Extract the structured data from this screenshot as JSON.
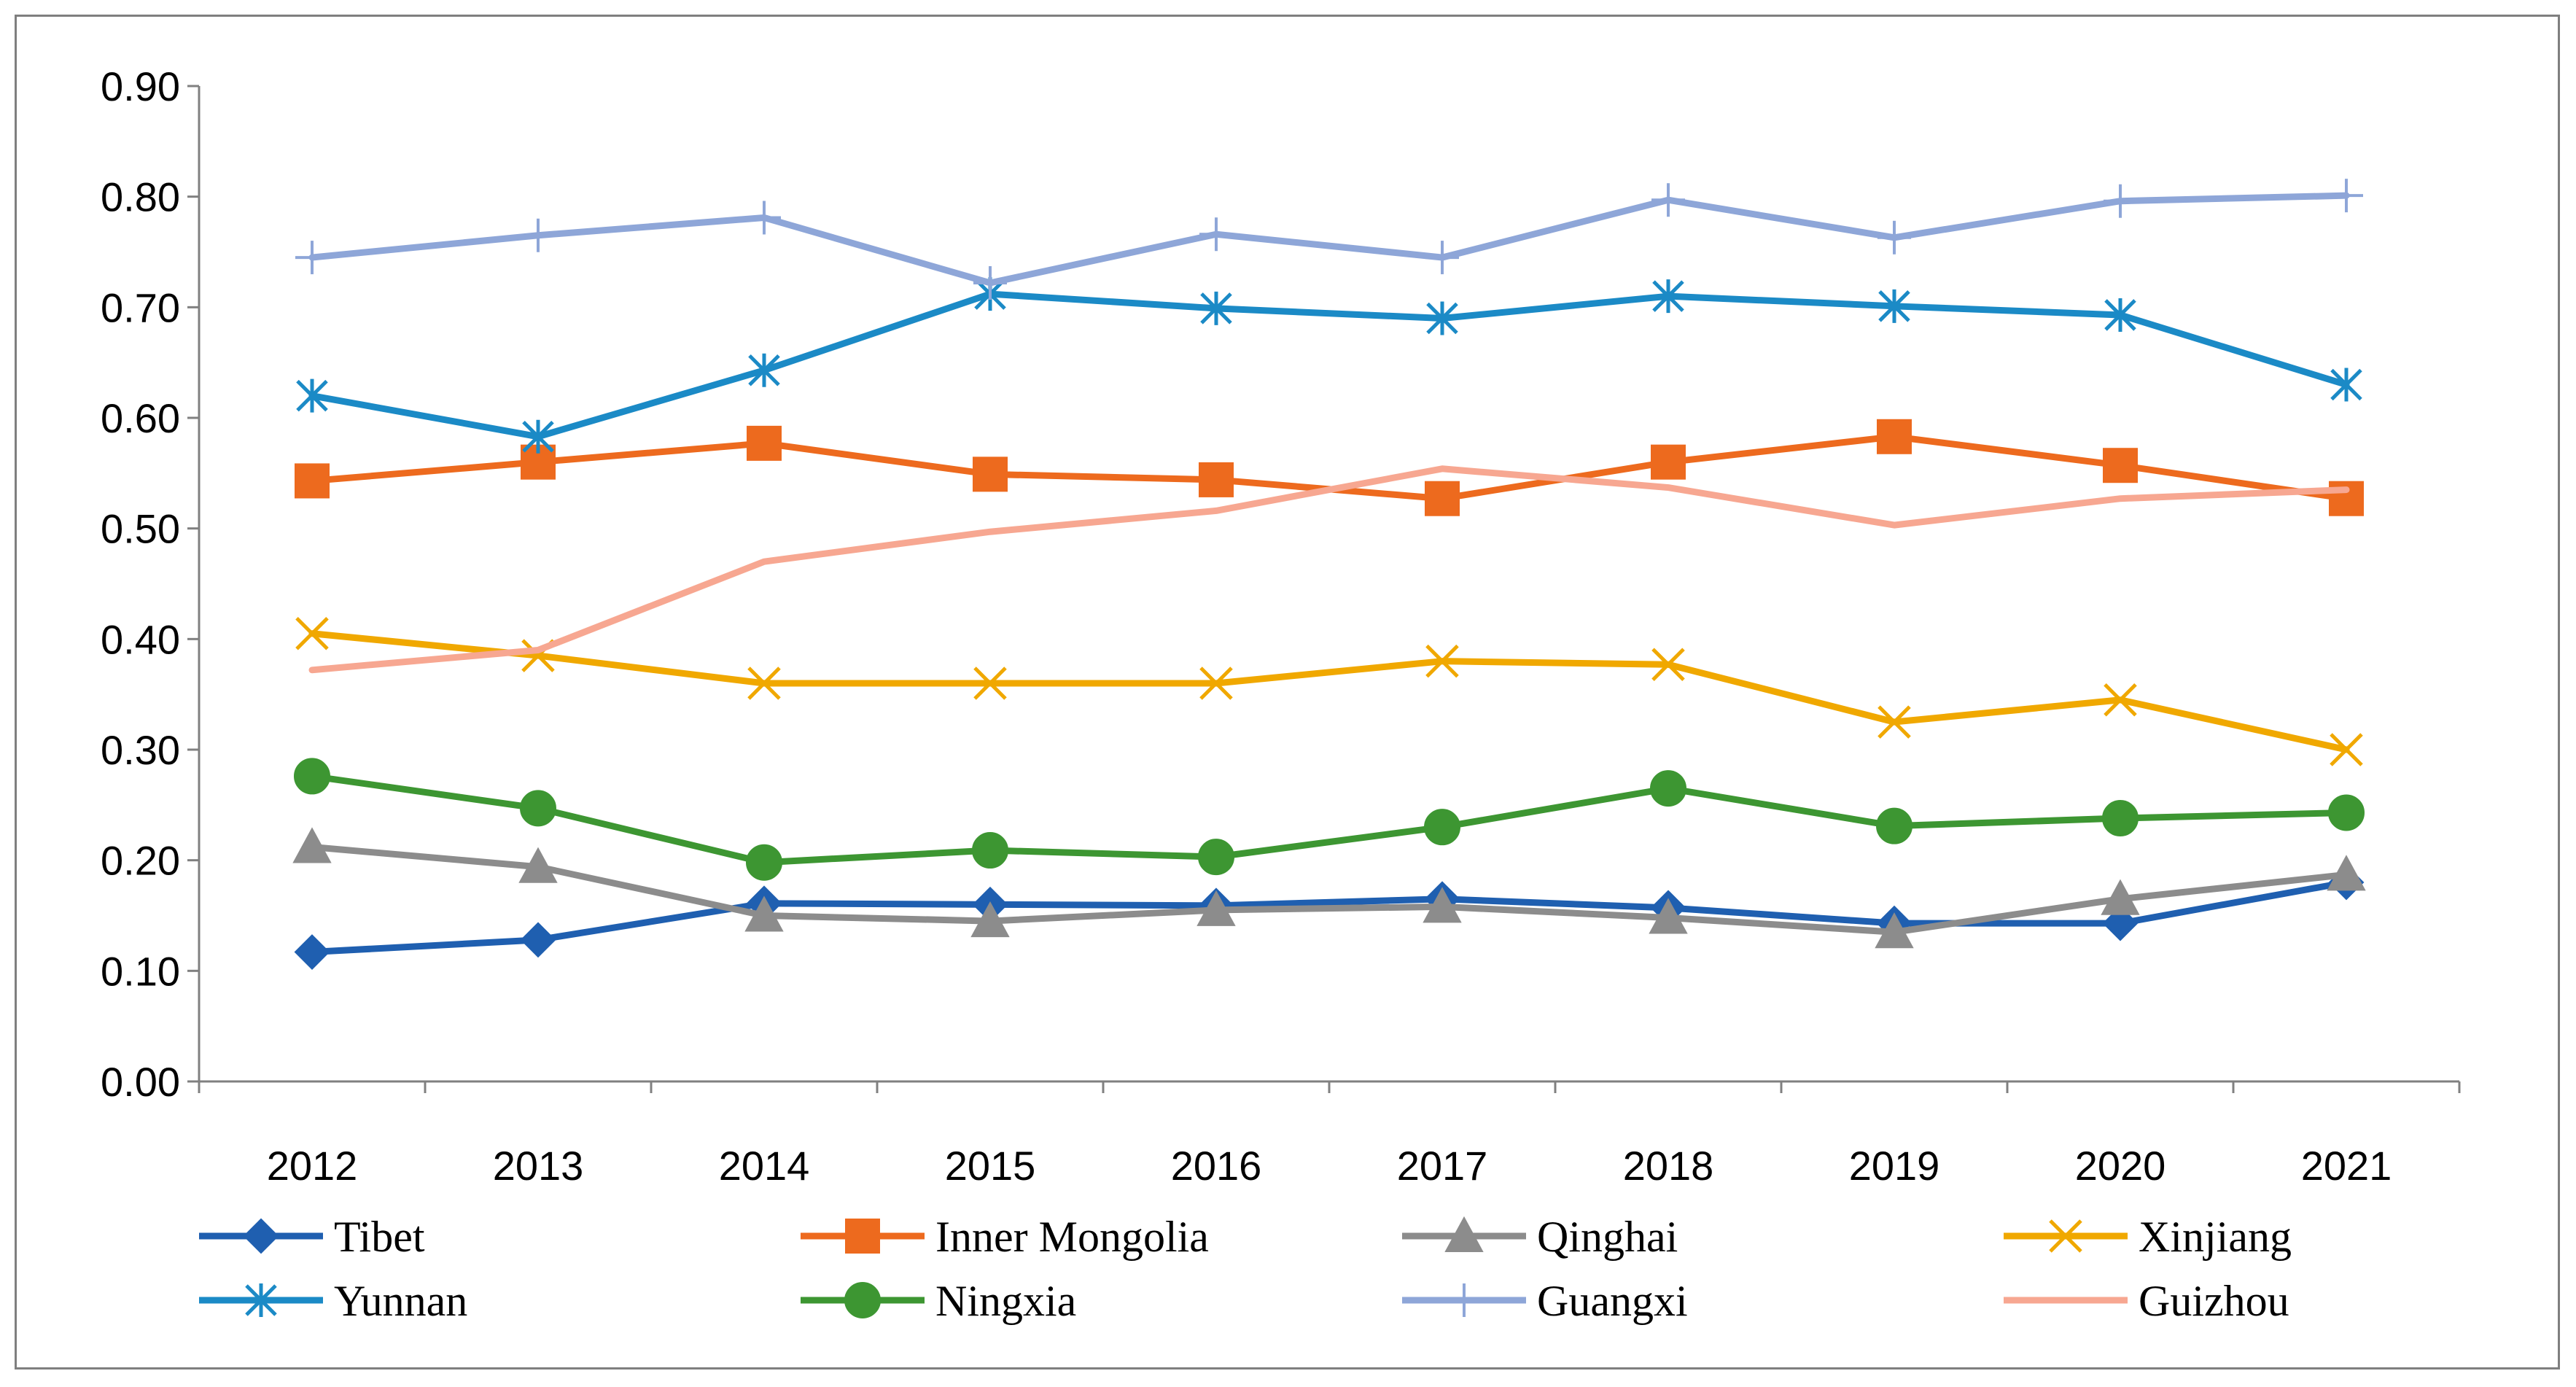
{
  "chart_data": {
    "type": "line",
    "title": "",
    "xlabel": "",
    "ylabel": "",
    "categories": [
      "2012",
      "2013",
      "2014",
      "2015",
      "2016",
      "2017",
      "2018",
      "2019",
      "2020",
      "2021"
    ],
    "ylim": [
      0,
      0.9
    ],
    "yticks": [
      "0.00",
      "0.10",
      "0.20",
      "0.30",
      "0.40",
      "0.50",
      "0.60",
      "0.70",
      "0.80",
      "0.90"
    ],
    "grid": false,
    "legend_position": "bottom",
    "series": [
      {
        "name": "Tibet",
        "color": "#1f5fb0",
        "marker": "diamond",
        "values": [
          0.117,
          0.128,
          0.161,
          0.16,
          0.159,
          0.165,
          0.157,
          0.143,
          0.143,
          0.18
        ]
      },
      {
        "name": "Inner Mongolia",
        "color": "#ed6a1e",
        "marker": "square",
        "values": [
          0.543,
          0.56,
          0.577,
          0.549,
          0.544,
          0.527,
          0.56,
          0.583,
          0.557,
          0.527
        ]
      },
      {
        "name": "Qinghai",
        "color": "#8c8c8c",
        "marker": "triangle",
        "values": [
          0.212,
          0.194,
          0.15,
          0.145,
          0.155,
          0.158,
          0.148,
          0.135,
          0.165,
          0.187
        ]
      },
      {
        "name": "Xinjiang",
        "color": "#f0a800",
        "marker": "x",
        "values": [
          0.405,
          0.385,
          0.36,
          0.36,
          0.36,
          0.38,
          0.377,
          0.325,
          0.345,
          0.3
        ]
      },
      {
        "name": "Yunnan",
        "color": "#1b8ac6",
        "marker": "asterisk",
        "values": [
          0.62,
          0.583,
          0.643,
          0.712,
          0.699,
          0.69,
          0.71,
          0.701,
          0.693,
          0.63
        ]
      },
      {
        "name": "Ningxia",
        "color": "#3d9632",
        "marker": "circle",
        "values": [
          0.276,
          0.247,
          0.198,
          0.209,
          0.203,
          0.23,
          0.265,
          0.231,
          0.238,
          0.243
        ]
      },
      {
        "name": "Guangxi",
        "color": "#8ea6d8",
        "marker": "plus",
        "values": [
          0.745,
          0.765,
          0.781,
          0.722,
          0.766,
          0.745,
          0.797,
          0.763,
          0.796,
          0.801
        ]
      },
      {
        "name": "Guizhou",
        "color": "#f7a791",
        "marker": "none",
        "values": [
          0.372,
          0.39,
          0.47,
          0.497,
          0.516,
          0.554,
          0.537,
          0.503,
          0.527,
          0.535
        ]
      }
    ]
  }
}
